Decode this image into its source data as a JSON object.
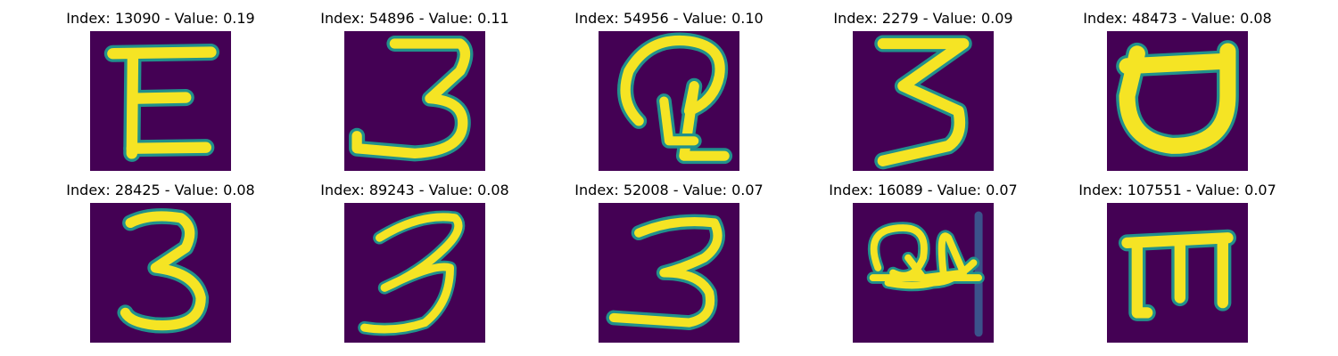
{
  "colors": {
    "background": "#440154",
    "stroke_core": "#f5e424",
    "stroke_mid": "#b5de2b",
    "stroke_edge": "#21918c"
  },
  "panels": [
    {
      "title": "Index: 13090 - Value: 0.19",
      "glyph": "letter-e-icon"
    },
    {
      "title": "Index: 54896 - Value: 0.11",
      "glyph": "digit-3-icon"
    },
    {
      "title": "Index: 54956 - Value: 0.10",
      "glyph": "curled-glyph-icon"
    },
    {
      "title": "Index: 2279 - Value: 0.09",
      "glyph": "angular-3-icon"
    },
    {
      "title": "Index: 48473 - Value: 0.08",
      "glyph": "rotated-d-icon"
    },
    {
      "title": "Index: 28425 - Value: 0.08",
      "glyph": "digit-3-icon"
    },
    {
      "title": "Index: 89243 - Value: 0.08",
      "glyph": "slanted-3-icon"
    },
    {
      "title": "Index: 52008 - Value: 0.07",
      "glyph": "digit-3-icon"
    },
    {
      "title": "Index: 16089 - Value: 0.07",
      "glyph": "scribble-glyph-icon"
    },
    {
      "title": "Index: 107551 - Value: 0.07",
      "glyph": "rotated-m-icon"
    }
  ]
}
